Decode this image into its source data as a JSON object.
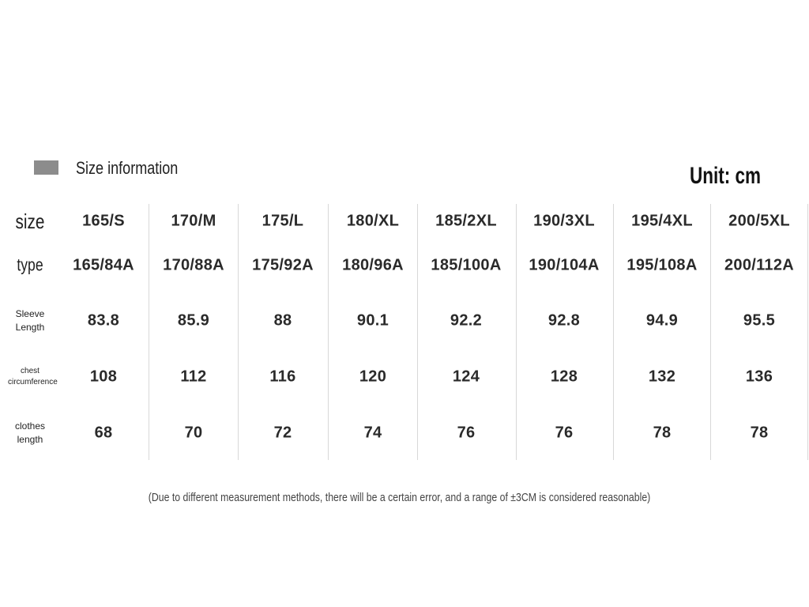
{
  "header": {
    "title": "Size information",
    "unit": "Unit: cm"
  },
  "table": {
    "rows": [
      {
        "label": "size",
        "cells": [
          "165/S",
          "170/M",
          "175/L",
          "180/XL",
          "185/2XL",
          "190/3XL",
          "195/4XL",
          "200/5XL"
        ]
      },
      {
        "label": "type",
        "cells": [
          "165/84A",
          "170/88A",
          "175/92A",
          "180/96A",
          "185/100A",
          "190/104A",
          "195/108A",
          "200/112A"
        ]
      },
      {
        "label": "Sleeve Length",
        "cells": [
          83.8,
          85.9,
          88,
          90.1,
          92.2,
          92.8,
          94.9,
          95.5
        ]
      },
      {
        "label": "chest circumference",
        "cells": [
          108,
          112,
          116,
          120,
          124,
          128,
          132,
          136
        ]
      },
      {
        "label": "clothes length",
        "cells": [
          68,
          70,
          72,
          74,
          76,
          76,
          78,
          78
        ]
      }
    ]
  },
  "note": "(Due to different measurement methods, there will be a certain error, and a range of ±3CM is considered reasonable)"
}
